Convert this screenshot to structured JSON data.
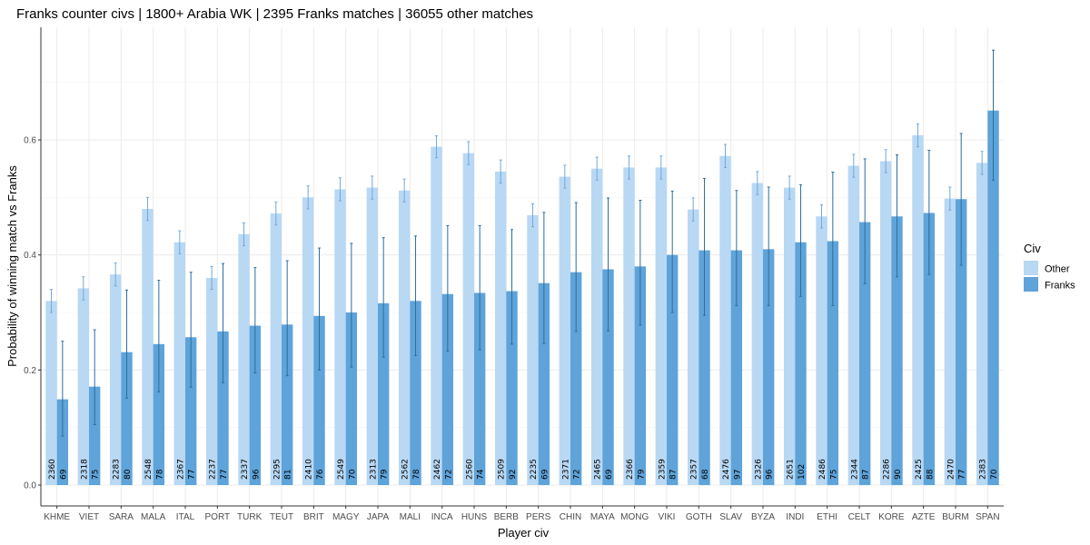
{
  "chart_data": {
    "type": "bar",
    "title": "Franks  counter civs | 1800+ Arabia WK |  2395   Franks  matches |  36055  other matches",
    "xlabel": "Player civ",
    "ylabel": "Probability of winning match vs Franks",
    "ylim": [
      0,
      0.78
    ],
    "yticks": [
      0.0,
      0.2,
      0.4,
      0.6
    ],
    "ytick_labels": [
      "0.0",
      "0.2",
      "0.4",
      "0.6"
    ],
    "grid": true,
    "legend": {
      "title": "Civ",
      "placement": "right"
    },
    "categories": [
      "KHME",
      "VIET",
      "SARA",
      "MALA",
      "ITAL",
      "PORT",
      "TURK",
      "TEUT",
      "BRIT",
      "MAGY",
      "JAPA",
      "MALI",
      "INCA",
      "HUNS",
      "BERB",
      "PERS",
      "CHIN",
      "MAYA",
      "MONG",
      "VIKI",
      "GOTH",
      "SLAV",
      "BYZA",
      "INDI",
      "ETHI",
      "CELT",
      "KORE",
      "AZTE",
      "BURM",
      "SPAN"
    ],
    "series": [
      {
        "name": "Other",
        "color": "#b8d8f4",
        "error_color": "#73a9d9",
        "values": [
          0.32,
          0.342,
          0.366,
          0.48,
          0.422,
          0.36,
          0.436,
          0.472,
          0.5,
          0.514,
          0.517,
          0.512,
          0.588,
          0.577,
          0.545,
          0.469,
          0.536,
          0.55,
          0.552,
          0.552,
          0.479,
          0.572,
          0.525,
          0.517,
          0.467,
          0.555,
          0.563,
          0.608,
          0.498,
          0.56
        ],
        "ci_low": [
          0.3,
          0.322,
          0.346,
          0.46,
          0.402,
          0.34,
          0.416,
          0.452,
          0.48,
          0.494,
          0.497,
          0.492,
          0.569,
          0.557,
          0.525,
          0.449,
          0.516,
          0.53,
          0.532,
          0.532,
          0.459,
          0.552,
          0.505,
          0.497,
          0.447,
          0.535,
          0.543,
          0.588,
          0.478,
          0.54
        ],
        "ci_high": [
          0.34,
          0.362,
          0.386,
          0.5,
          0.442,
          0.38,
          0.456,
          0.492,
          0.52,
          0.534,
          0.537,
          0.532,
          0.607,
          0.597,
          0.565,
          0.489,
          0.556,
          0.57,
          0.572,
          0.572,
          0.499,
          0.592,
          0.545,
          0.537,
          0.487,
          0.575,
          0.583,
          0.628,
          0.518,
          0.58
        ],
        "counts": [
          2360,
          2318,
          2283,
          2548,
          2367,
          2237,
          2337,
          2295,
          2410,
          2549,
          2313,
          2562,
          2462,
          2560,
          2509,
          2235,
          2371,
          2465,
          2366,
          2359,
          2357,
          2476,
          2326,
          2651,
          2486,
          2344,
          2286,
          2425,
          2470,
          2383
        ]
      },
      {
        "name": "Franks",
        "color": "#5ea3d9",
        "error_color": "#2a6f9e",
        "values": [
          0.149,
          0.171,
          0.231,
          0.245,
          0.257,
          0.267,
          0.277,
          0.279,
          0.294,
          0.3,
          0.316,
          0.32,
          0.332,
          0.334,
          0.337,
          0.351,
          0.37,
          0.375,
          0.38,
          0.4,
          0.408,
          0.408,
          0.41,
          0.422,
          0.424,
          0.457,
          0.467,
          0.473,
          0.497,
          0.651
        ],
        "ci_low": [
          0.085,
          0.105,
          0.151,
          0.162,
          0.17,
          0.178,
          0.195,
          0.19,
          0.2,
          0.205,
          0.222,
          0.225,
          0.233,
          0.235,
          0.245,
          0.246,
          0.267,
          0.268,
          0.278,
          0.3,
          0.295,
          0.312,
          0.312,
          0.328,
          0.312,
          0.35,
          0.362,
          0.366,
          0.382,
          0.53
        ],
        "ci_high": [
          0.25,
          0.27,
          0.339,
          0.356,
          0.37,
          0.385,
          0.378,
          0.39,
          0.412,
          0.42,
          0.43,
          0.433,
          0.451,
          0.451,
          0.444,
          0.474,
          0.491,
          0.499,
          0.495,
          0.511,
          0.533,
          0.512,
          0.518,
          0.522,
          0.544,
          0.567,
          0.574,
          0.582,
          0.611,
          0.756
        ],
        "counts": [
          69,
          75,
          80,
          78,
          77,
          77,
          96,
          81,
          76,
          70,
          79,
          78,
          72,
          74,
          92,
          69,
          72,
          69,
          79,
          87,
          68,
          97,
          96,
          102,
          75,
          87,
          90,
          88,
          77,
          70
        ]
      }
    ]
  }
}
